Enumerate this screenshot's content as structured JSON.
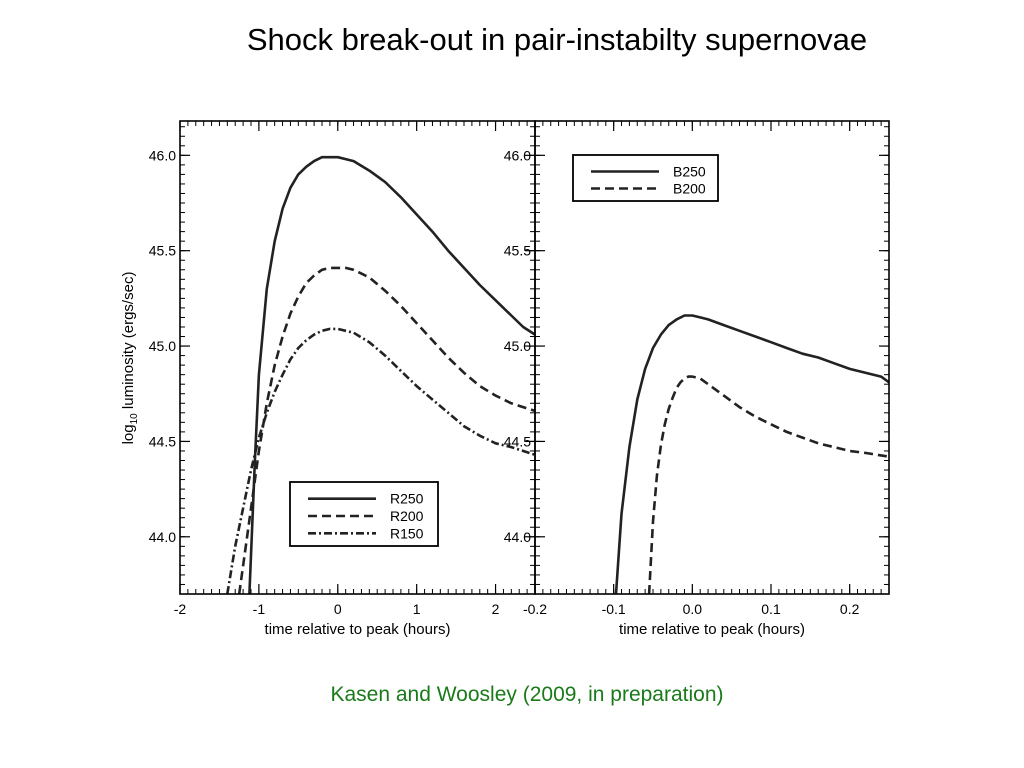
{
  "slide": {
    "title": "Shock break-out in pair-instabilty supernovae",
    "credit": "Kasen and Woosley (2009, in preparation)",
    "credit_color": "#1a7a1a"
  },
  "chart_data": [
    {
      "type": "line",
      "xlabel": "time relative to peak (hours)",
      "ylabel": "log10 luminosity (ergs/sec)",
      "ylabel_parts": {
        "pre": "log",
        "sub": "10",
        "post": " luminosity (ergs/sec)"
      },
      "xlim": [
        -2.0,
        2.5
      ],
      "ylim": [
        43.7,
        46.18
      ],
      "xticks": [
        -2,
        -1,
        0,
        1,
        2
      ],
      "xtick_labels": [
        "-2",
        "-1",
        "0",
        "1",
        "2"
      ],
      "yticks": [
        44.0,
        44.5,
        45.0,
        45.5,
        46.0
      ],
      "ytick_labels": [
        "44.0",
        "44.5",
        "45.0",
        "45.5",
        "46.0"
      ],
      "legend": {
        "position": "bottom-right",
        "entries": [
          "R250",
          "R200",
          "R150"
        ]
      },
      "series": [
        {
          "name": "R250",
          "style": "solid",
          "x": [
            -1.12,
            -1.05,
            -1.0,
            -0.9,
            -0.8,
            -0.7,
            -0.6,
            -0.5,
            -0.4,
            -0.3,
            -0.2,
            -0.1,
            0.0,
            0.1,
            0.2,
            0.4,
            0.6,
            0.8,
            1.0,
            1.2,
            1.4,
            1.6,
            1.8,
            2.0,
            2.2,
            2.35,
            2.5
          ],
          "y": [
            43.7,
            44.4,
            44.85,
            45.3,
            45.55,
            45.72,
            45.83,
            45.9,
            45.94,
            45.97,
            45.99,
            45.99,
            45.99,
            45.98,
            45.97,
            45.92,
            45.86,
            45.78,
            45.69,
            45.6,
            45.5,
            45.41,
            45.32,
            45.24,
            45.16,
            45.1,
            45.06
          ]
        },
        {
          "name": "R200",
          "style": "dashed",
          "x": [
            -1.25,
            -1.15,
            -1.0,
            -0.9,
            -0.8,
            -0.7,
            -0.6,
            -0.5,
            -0.4,
            -0.3,
            -0.2,
            -0.1,
            0.0,
            0.1,
            0.2,
            0.4,
            0.6,
            0.8,
            1.0,
            1.2,
            1.4,
            1.6,
            1.8,
            2.0,
            2.2,
            2.5
          ],
          "y": [
            43.7,
            44.0,
            44.45,
            44.7,
            44.9,
            45.05,
            45.17,
            45.26,
            45.33,
            45.37,
            45.4,
            45.41,
            45.41,
            45.41,
            45.4,
            45.36,
            45.29,
            45.21,
            45.12,
            45.03,
            44.94,
            44.86,
            44.79,
            44.74,
            44.7,
            44.66
          ]
        },
        {
          "name": "R150",
          "style": "dashdot",
          "x": [
            -1.4,
            -1.3,
            -1.2,
            -1.1,
            -1.0,
            -0.9,
            -0.8,
            -0.7,
            -0.6,
            -0.5,
            -0.4,
            -0.3,
            -0.2,
            -0.1,
            0.0,
            0.1,
            0.2,
            0.4,
            0.6,
            0.8,
            1.0,
            1.2,
            1.4,
            1.6,
            1.8,
            2.0,
            2.2,
            2.5
          ],
          "y": [
            43.7,
            43.95,
            44.15,
            44.35,
            44.52,
            44.65,
            44.76,
            44.85,
            44.93,
            44.99,
            45.03,
            45.06,
            45.08,
            45.09,
            45.09,
            45.08,
            45.07,
            45.02,
            44.95,
            44.87,
            44.79,
            44.72,
            44.65,
            44.58,
            44.53,
            44.49,
            44.47,
            44.43
          ]
        }
      ]
    },
    {
      "type": "line",
      "xlabel": "time relative to peak (hours)",
      "xlim": [
        -0.2,
        0.25
      ],
      "ylim": [
        43.7,
        46.18
      ],
      "xticks": [
        -0.2,
        -0.1,
        0.0,
        0.1,
        0.2
      ],
      "xtick_labels": [
        "-0.2",
        "-0.1",
        "0.0",
        "0.1",
        "0.2"
      ],
      "yticks": [
        44.0,
        44.5,
        45.0,
        45.5,
        46.0
      ],
      "ytick_labels": [
        "44.0",
        "44.5",
        "45.0",
        "45.5",
        "46.0"
      ],
      "legend": {
        "position": "top-left",
        "entries": [
          "B250",
          "B200"
        ]
      },
      "series": [
        {
          "name": "B250",
          "style": "solid",
          "x": [
            -0.097,
            -0.09,
            -0.08,
            -0.07,
            -0.06,
            -0.05,
            -0.04,
            -0.03,
            -0.02,
            -0.01,
            0.0,
            0.01,
            0.02,
            0.04,
            0.06,
            0.08,
            0.1,
            0.12,
            0.14,
            0.16,
            0.18,
            0.2,
            0.22,
            0.24,
            0.25
          ],
          "y": [
            43.7,
            44.12,
            44.47,
            44.72,
            44.88,
            44.99,
            45.06,
            45.11,
            45.14,
            45.16,
            45.16,
            45.15,
            45.14,
            45.11,
            45.08,
            45.05,
            45.02,
            44.99,
            44.96,
            44.94,
            44.91,
            44.88,
            44.86,
            44.84,
            44.81
          ]
        },
        {
          "name": "B200",
          "style": "dashed",
          "x": [
            -0.055,
            -0.05,
            -0.045,
            -0.04,
            -0.035,
            -0.03,
            -0.025,
            -0.02,
            -0.015,
            -0.01,
            -0.005,
            0.0,
            0.01,
            0.02,
            0.04,
            0.06,
            0.08,
            0.1,
            0.12,
            0.14,
            0.16,
            0.18,
            0.2,
            0.22,
            0.25
          ],
          "y": [
            43.7,
            44.08,
            44.32,
            44.48,
            44.59,
            44.67,
            44.73,
            44.78,
            44.81,
            44.83,
            44.84,
            44.84,
            44.83,
            44.8,
            44.74,
            44.68,
            44.63,
            44.59,
            44.55,
            44.52,
            44.49,
            44.47,
            44.45,
            44.44,
            44.42
          ]
        }
      ]
    }
  ]
}
